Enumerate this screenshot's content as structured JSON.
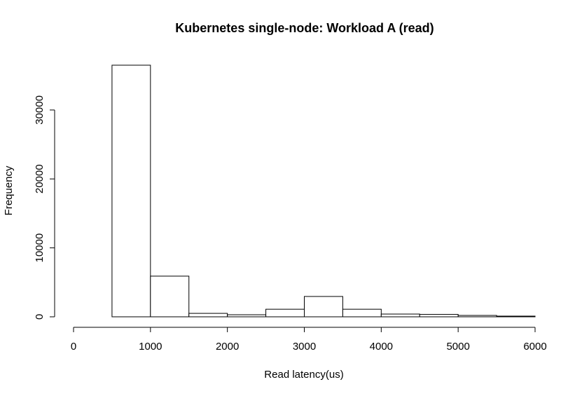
{
  "chart_data": {
    "type": "histogram",
    "title": "Kubernetes single-node: Workload A (read)",
    "x_label": "Read latency(us)",
    "y_label": "Frequency",
    "bins": [
      0,
      500,
      1000,
      1500,
      2000,
      2500,
      3000,
      3500,
      4000,
      4500,
      5000,
      5500,
      6000
    ],
    "values": [
      0,
      36500,
      5900,
      500,
      300,
      1100,
      2950,
      1100,
      400,
      350,
      200,
      100
    ],
    "color": "#ffffff",
    "xlim": [
      0,
      6000
    ],
    "xticks": [
      0,
      1000,
      2000,
      3000,
      4000,
      5000,
      6000
    ],
    "ylim": [
      0,
      36500
    ],
    "yticks": [
      0,
      10000,
      20000,
      30000
    ]
  }
}
